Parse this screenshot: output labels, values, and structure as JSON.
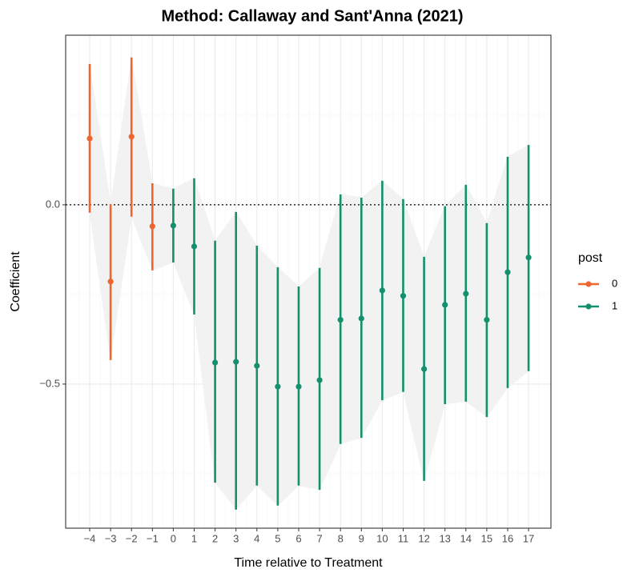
{
  "chart_data": {
    "type": "errorbar",
    "title": "Method: Callaway and Sant'Anna (2021)",
    "x_label": "Time relative to Treatment",
    "y_label": "Coefficient",
    "legend_title": "post",
    "xlim": [
      -5.15,
      18.07
    ],
    "ylim": [
      -0.902,
      0.473
    ],
    "xticks": [
      {
        "value": -4,
        "label": "−4"
      },
      {
        "value": -3,
        "label": "−3"
      },
      {
        "value": -2,
        "label": "−2"
      },
      {
        "value": -1,
        "label": "−1"
      },
      0,
      1,
      2,
      3,
      4,
      5,
      6,
      7,
      8,
      9,
      10,
      11,
      12,
      13,
      14,
      15,
      16,
      17
    ],
    "yticks": [
      {
        "value": -0.5,
        "label": "−0.5"
      },
      {
        "value": 0,
        "label": "0.0"
      }
    ],
    "hline": 0,
    "grid": true,
    "ribbon_color": "#f2f2f2",
    "series": [
      {
        "name": "0",
        "color": "#f0652f",
        "x": [
          -4,
          -3,
          -2,
          -1
        ],
        "values": [
          0.185,
          -0.214,
          0.19,
          -0.06
        ],
        "lower": [
          -0.022,
          -0.433,
          -0.033,
          -0.183
        ],
        "upper": [
          0.393,
          0.002,
          0.411,
          0.06
        ]
      },
      {
        "name": "1",
        "color": "#14906c",
        "x": [
          0,
          1,
          2,
          3,
          4,
          5,
          6,
          7,
          8,
          9,
          10,
          11,
          12,
          13,
          14,
          15,
          16,
          17
        ],
        "values": [
          -0.058,
          -0.116,
          -0.44,
          -0.438,
          -0.449,
          -0.507,
          -0.507,
          -0.489,
          -0.321,
          -0.317,
          -0.239,
          -0.254,
          -0.458,
          -0.279,
          -0.248,
          -0.321,
          -0.188,
          -0.147
        ],
        "lower": [
          -0.161,
          -0.306,
          -0.775,
          -0.85,
          -0.783,
          -0.839,
          -0.783,
          -0.795,
          -0.667,
          -0.65,
          -0.545,
          -0.522,
          -0.77,
          -0.556,
          -0.549,
          -0.592,
          -0.511,
          -0.464
        ],
        "upper": [
          0.045,
          0.074,
          -0.1,
          -0.02,
          -0.114,
          -0.174,
          -0.228,
          -0.176,
          0.029,
          0.02,
          0.067,
          0.016,
          -0.145,
          -0.004,
          0.056,
          -0.051,
          0.134,
          0.167
        ]
      }
    ]
  }
}
